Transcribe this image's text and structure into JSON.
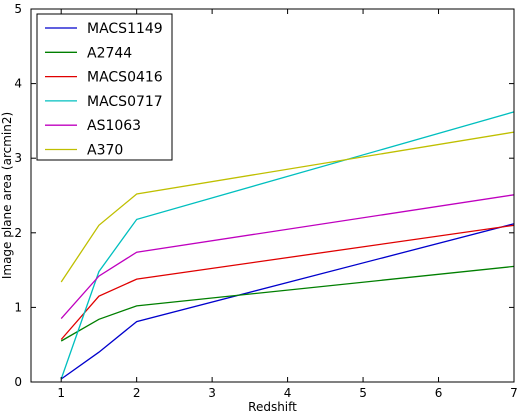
{
  "chart_data": {
    "type": "line",
    "title": "",
    "xlabel": "Redshift",
    "ylabel": "Image plane area (arcmin2)",
    "xlim": [
      0.6,
      7
    ],
    "ylim": [
      0,
      5
    ],
    "xticks": [
      1,
      2,
      3,
      4,
      5,
      6,
      7
    ],
    "yticks": [
      0,
      1,
      2,
      3,
      4,
      5
    ],
    "grid": false,
    "legend_position": "top-left",
    "x": [
      1,
      1.5,
      2,
      7
    ],
    "series": [
      {
        "name": "MACS1149",
        "color": "#0000cc",
        "values": [
          0.04,
          0.4,
          0.81,
          2.12
        ]
      },
      {
        "name": "A2744",
        "color": "#007f00",
        "values": [
          0.55,
          0.84,
          1.02,
          1.55
        ]
      },
      {
        "name": "MACS0416",
        "color": "#e00000",
        "values": [
          0.57,
          1.15,
          1.38,
          2.1
        ]
      },
      {
        "name": "MACS0717",
        "color": "#00bfbf",
        "values": [
          0.04,
          1.48,
          2.18,
          3.62
        ]
      },
      {
        "name": "AS1063",
        "color": "#bf00bf",
        "values": [
          0.85,
          1.42,
          1.74,
          2.51
        ]
      },
      {
        "name": "A370",
        "color": "#bfbf00",
        "values": [
          1.34,
          2.1,
          2.52,
          3.35
        ]
      }
    ]
  }
}
